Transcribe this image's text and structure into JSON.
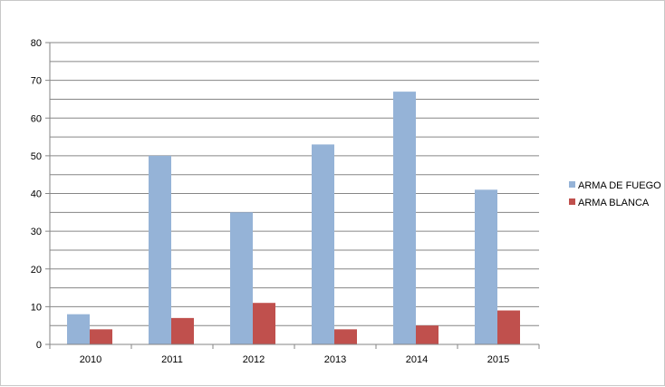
{
  "chart_data": {
    "type": "bar",
    "categories": [
      "2010",
      "2011",
      "2012",
      "2013",
      "2014",
      "2015"
    ],
    "series": [
      {
        "name": "ARMA DE FUEGO",
        "color": "#95B3D7",
        "values": [
          8,
          50,
          35,
          53,
          67,
          41
        ]
      },
      {
        "name": "ARMA BLANCA",
        "color": "#C0504D",
        "values": [
          4,
          7,
          11,
          4,
          5,
          9
        ]
      }
    ],
    "title": "",
    "xlabel": "",
    "ylabel": "",
    "ylim": [
      0,
      80
    ],
    "yticks": [
      0,
      10,
      20,
      30,
      40,
      50,
      60,
      70,
      80
    ],
    "grid": true,
    "legend_position": "right"
  }
}
